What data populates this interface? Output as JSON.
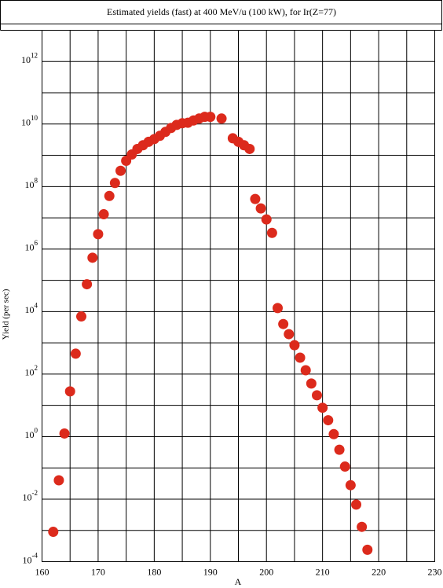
{
  "chart_data": {
    "type": "scatter",
    "title": "Estimated yields (fast) at 400 MeV/u (100 kW), for Ir(Z=77)",
    "x_label": "A",
    "y_label": "Yield (per sec)",
    "log_y": true,
    "grid": true,
    "xlim": [
      160,
      230
    ],
    "xticks": [
      160,
      170,
      180,
      190,
      200,
      210,
      220,
      230
    ],
    "xgridticks": [
      165,
      175,
      185,
      195,
      205,
      215,
      225
    ],
    "ylim": [
      0.0001,
      10000000000000
    ],
    "yticks": [
      {
        "value": 0.0001,
        "label": "10^-4"
      },
      {
        "value": 0.01,
        "label": "10^-2"
      },
      {
        "value": 1,
        "label": "10^0"
      },
      {
        "value": 100,
        "label": "10^2"
      },
      {
        "value": 10000,
        "label": "10^4"
      },
      {
        "value": 1000000,
        "label": "10^6"
      },
      {
        "value": 100000000,
        "label": "10^8"
      },
      {
        "value": 10000000000,
        "label": "10^10"
      },
      {
        "value": 1000000000000,
        "label": "10^12"
      }
    ],
    "ygridticks": [
      0.001,
      0.1,
      10,
      1000,
      100000,
      10000000,
      1000000000,
      100000000000
    ],
    "series": [
      {
        "name": "Ir",
        "color": "#dc2a1c",
        "x": [
          162,
          163,
          164,
          165,
          166,
          167,
          168,
          169,
          170,
          171,
          172,
          173,
          174,
          175,
          176,
          177,
          178,
          179,
          180,
          181,
          182,
          183,
          184,
          185,
          186,
          187,
          188,
          189,
          190,
          192,
          194,
          195,
          196,
          197,
          198,
          199,
          200,
          201,
          202,
          203,
          204,
          205,
          206,
          207,
          208,
          209,
          210,
          211,
          212,
          213,
          214,
          215,
          216,
          217,
          218
        ],
        "values": [
          0.0009,
          0.04,
          1.26,
          28,
          450,
          7000,
          75000,
          530000,
          3000000,
          13000000,
          50000000,
          130000000,
          320000000,
          670000000,
          1060000000,
          1600000000,
          2100000000,
          2700000000,
          3300000000,
          4200000000,
          5600000000,
          7500000000,
          9400000000,
          10600000000,
          11000000000,
          13000000000,
          15000000000,
          17000000000,
          17000000000,
          15000000000,
          3500000000,
          2700000000,
          2100000000,
          1600000000,
          40000000,
          20000000,
          8900000,
          3300000,
          13000,
          4000,
          1900,
          840,
          335,
          133,
          50,
          21,
          8.4,
          3.35,
          1.2,
          0.38,
          0.11,
          0.028,
          0.0067,
          0.0013,
          0.00024
        ]
      }
    ]
  }
}
